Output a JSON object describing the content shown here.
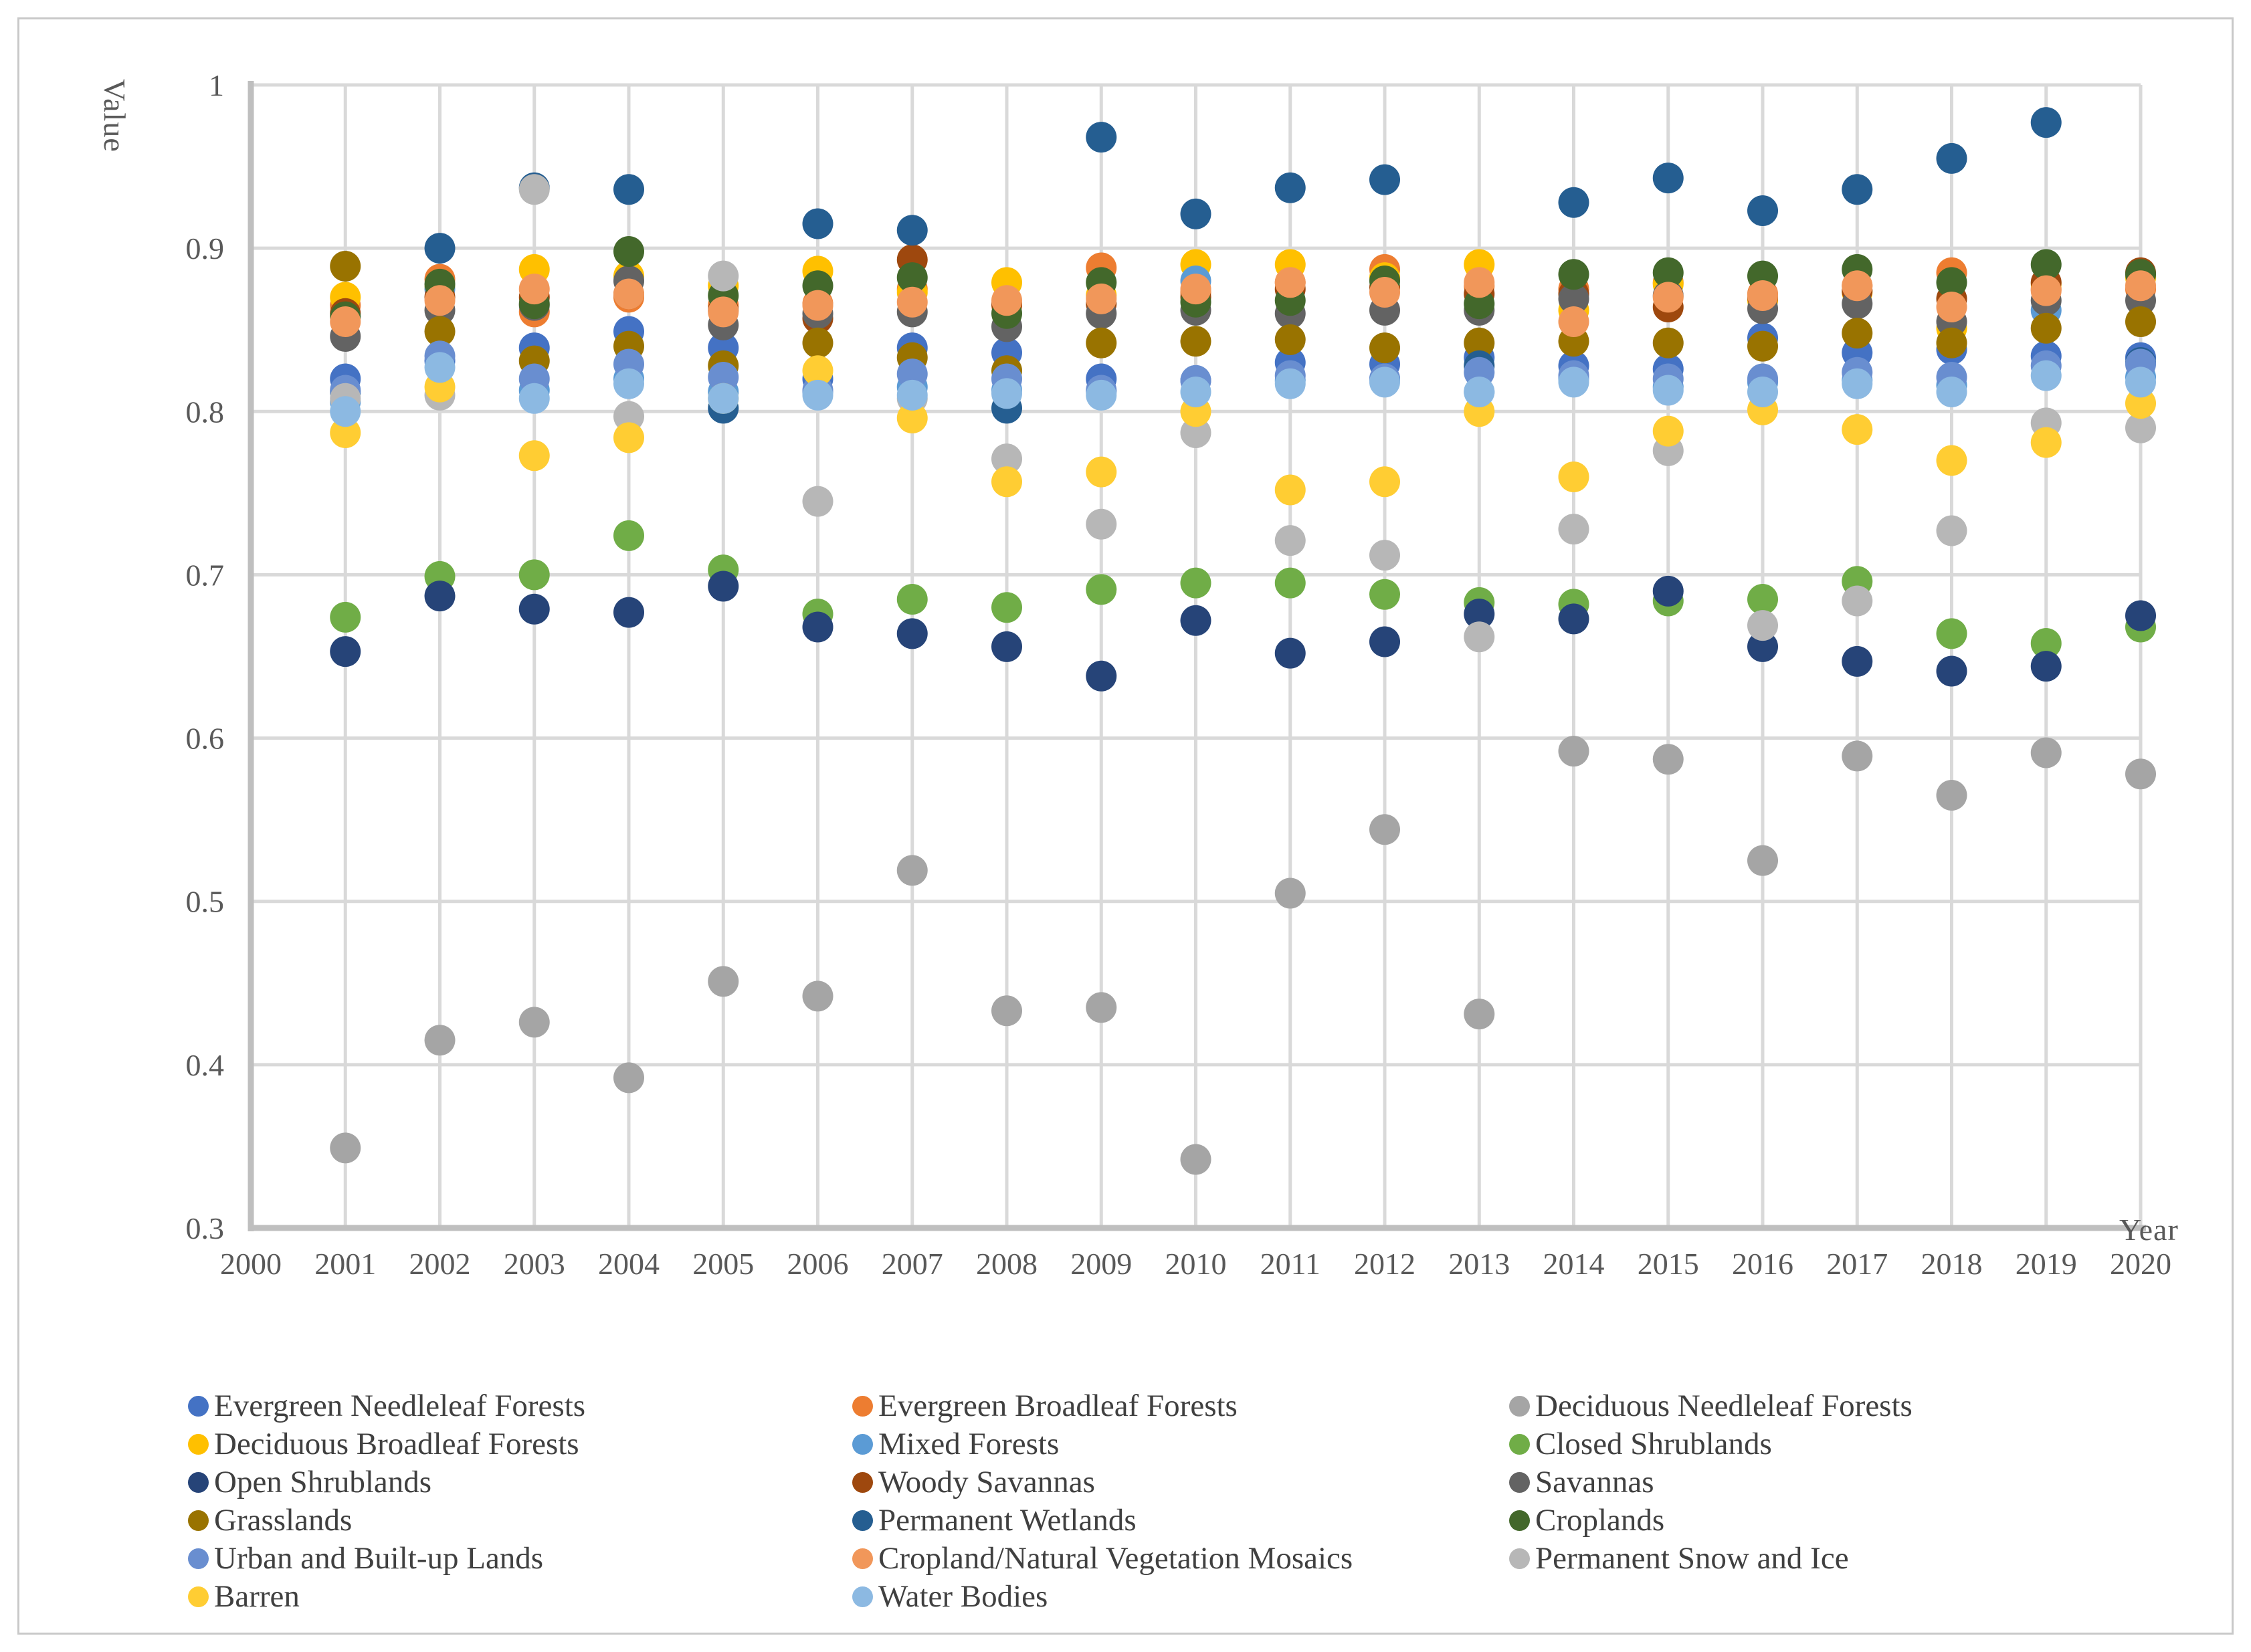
{
  "chart_data": {
    "type": "scatter",
    "title": "",
    "xlabel": "Year",
    "ylabel": "Value",
    "xlim": [
      2000,
      2020
    ],
    "ylim": [
      0.3,
      1.0
    ],
    "grid": true,
    "legend_position": "bottom",
    "x_ticks": [
      2000,
      2001,
      2002,
      2003,
      2004,
      2005,
      2006,
      2007,
      2008,
      2009,
      2010,
      2011,
      2012,
      2013,
      2014,
      2015,
      2016,
      2017,
      2018,
      2019,
      2020
    ],
    "y_ticks": [
      {
        "label": "1",
        "value": 1.0
      },
      {
        "label": "0.9",
        "value": 0.9
      },
      {
        "label": "0.8",
        "value": 0.8
      },
      {
        "label": "0.7",
        "value": 0.7
      },
      {
        "label": "0.6",
        "value": 0.6
      },
      {
        "label": "0.5",
        "value": 0.5
      },
      {
        "label": "0.4",
        "value": 0.4
      },
      {
        "label": "0.3",
        "value": 0.3
      }
    ],
    "years": [
      2001,
      2002,
      2003,
      2004,
      2005,
      2006,
      2007,
      2008,
      2009,
      2010,
      2011,
      2012,
      2013,
      2014,
      2015,
      2016,
      2017,
      2018,
      2019,
      2020
    ],
    "series": [
      {
        "name": "Evergreen Needleleaf Forests",
        "color": "#4472C4",
        "values": [
          0.82,
          0.831,
          0.839,
          0.849,
          0.839,
          0.82,
          0.839,
          0.836,
          0.82,
          0.819,
          0.83,
          0.829,
          0.833,
          0.828,
          0.826,
          0.845,
          0.836,
          0.838,
          0.834,
          0.833
        ]
      },
      {
        "name": "Evergreen Broadleaf Forests",
        "color": "#ED7D31",
        "values": [
          0.865,
          0.881,
          0.861,
          0.87,
          0.865,
          0.866,
          0.875,
          0.865,
          0.888,
          0.873,
          0.879,
          0.887,
          0.877,
          0.875,
          0.879,
          0.872,
          0.877,
          0.885,
          0.875,
          0.875
        ]
      },
      {
        "name": "Deciduous Needleleaf Forests",
        "color": "#A5A5A5",
        "values": [
          0.349,
          0.415,
          0.426,
          0.392,
          0.451,
          0.442,
          0.519,
          0.433,
          0.435,
          0.342,
          0.505,
          0.544,
          0.431,
          0.592,
          0.587,
          0.525,
          0.589,
          0.565,
          0.591,
          0.578
        ]
      },
      {
        "name": "Deciduous Broadleaf Forests",
        "color": "#FFC000",
        "values": [
          0.87,
          0.876,
          0.887,
          0.883,
          0.877,
          0.886,
          0.873,
          0.879,
          0.871,
          0.89,
          0.89,
          0.882,
          0.89,
          0.862,
          0.878,
          0.868,
          0.873,
          0.851,
          0.878,
          0.882
        ]
      },
      {
        "name": "Mixed Forests",
        "color": "#5B9BD5",
        "values": [
          0.806,
          0.875,
          0.813,
          0.82,
          0.812,
          0.812,
          0.815,
          0.813,
          0.812,
          0.88,
          0.819,
          0.82,
          0.812,
          0.82,
          0.815,
          0.818,
          0.819,
          0.816,
          0.862,
          0.821
        ]
      },
      {
        "name": "Closed Shrublands",
        "color": "#70AD47",
        "values": [
          0.674,
          0.699,
          0.7,
          0.724,
          0.703,
          0.676,
          0.685,
          0.68,
          0.691,
          0.695,
          0.695,
          0.688,
          0.683,
          0.682,
          0.684,
          0.685,
          0.696,
          0.664,
          0.658,
          0.668
        ]
      },
      {
        "name": "Open Shrublands",
        "color": "#264478",
        "values": [
          0.653,
          0.687,
          0.679,
          0.677,
          0.693,
          0.668,
          0.664,
          0.656,
          0.638,
          0.672,
          0.652,
          0.659,
          0.676,
          0.673,
          0.69,
          0.656,
          0.647,
          0.641,
          0.644,
          0.675
        ]
      },
      {
        "name": "Woody Savannas",
        "color": "#9E480E",
        "values": [
          0.86,
          0.87,
          0.87,
          0.872,
          0.862,
          0.857,
          0.893,
          0.866,
          0.866,
          0.87,
          0.875,
          0.876,
          0.872,
          0.872,
          0.864,
          0.87,
          0.874,
          0.869,
          0.879,
          0.885
        ]
      },
      {
        "name": "Savannas",
        "color": "#636363",
        "values": [
          0.846,
          0.862,
          0.865,
          0.88,
          0.853,
          0.86,
          0.861,
          0.852,
          0.86,
          0.862,
          0.86,
          0.862,
          0.862,
          0.869,
          0.871,
          0.863,
          0.866,
          0.855,
          0.868,
          0.868
        ]
      },
      {
        "name": "Grasslands",
        "color": "#997300",
        "values": [
          0.889,
          0.849,
          0.831,
          0.84,
          0.828,
          0.842,
          0.833,
          0.825,
          0.842,
          0.843,
          0.844,
          0.839,
          0.842,
          0.843,
          0.842,
          0.84,
          0.848,
          0.842,
          0.851,
          0.855
        ]
      },
      {
        "name": "Permanent Wetlands",
        "color": "#255E91",
        "values": [
          0.812,
          0.9,
          0.937,
          0.936,
          0.802,
          0.915,
          0.911,
          0.802,
          0.968,
          0.921,
          0.937,
          0.942,
          0.828,
          0.928,
          0.943,
          0.923,
          0.936,
          0.955,
          0.977,
          0.83
        ]
      },
      {
        "name": "Croplands",
        "color": "#43682B",
        "values": [
          0.858,
          0.878,
          0.866,
          0.898,
          0.871,
          0.877,
          0.882,
          0.86,
          0.879,
          0.867,
          0.868,
          0.88,
          0.866,
          0.884,
          0.885,
          0.883,
          0.887,
          0.879,
          0.89,
          0.884
        ]
      },
      {
        "name": "Urban and Built-up Lands",
        "color": "#698ED0",
        "values": [
          0.813,
          0.834,
          0.82,
          0.829,
          0.821,
          0.813,
          0.823,
          0.82,
          0.813,
          0.819,
          0.822,
          0.82,
          0.824,
          0.822,
          0.82,
          0.82,
          0.824,
          0.821,
          0.828,
          0.829
        ]
      },
      {
        "name": "Cropland/Natural Vegetation Mosaics",
        "color": "#F1975A",
        "values": [
          0.855,
          0.868,
          0.875,
          0.872,
          0.861,
          0.865,
          0.867,
          0.868,
          0.869,
          0.875,
          0.879,
          0.873,
          0.879,
          0.855,
          0.87,
          0.871,
          0.877,
          0.864,
          0.874,
          0.877
        ]
      },
      {
        "name": "Permanent Snow and Ice",
        "color": "#B7B7B7",
        "values": [
          0.808,
          0.81,
          0.936,
          0.797,
          0.883,
          0.745,
          0.808,
          0.771,
          0.731,
          0.787,
          0.721,
          0.712,
          0.662,
          0.728,
          0.776,
          0.669,
          0.684,
          0.727,
          0.793,
          0.79
        ]
      },
      {
        "name": "Barren",
        "color": "#FFCD33",
        "values": [
          0.787,
          0.815,
          0.773,
          0.784,
          0.808,
          0.825,
          0.796,
          0.757,
          0.763,
          0.8,
          0.752,
          0.757,
          0.8,
          0.76,
          0.788,
          0.801,
          0.789,
          0.77,
          0.781,
          0.805
        ]
      },
      {
        "name": "Water Bodies",
        "color": "#8CB9E2",
        "values": [
          0.8,
          0.827,
          0.808,
          0.817,
          0.808,
          0.81,
          0.81,
          0.811,
          0.81,
          0.812,
          0.817,
          0.818,
          0.812,
          0.818,
          0.813,
          0.812,
          0.817,
          0.812,
          0.822,
          0.818
        ]
      }
    ],
    "style": {
      "gridline_color": "#D9D9D9",
      "axis_color": "#BFBFBF",
      "tick_label_color": "#595959",
      "legend_text_color": "#404040"
    }
  }
}
